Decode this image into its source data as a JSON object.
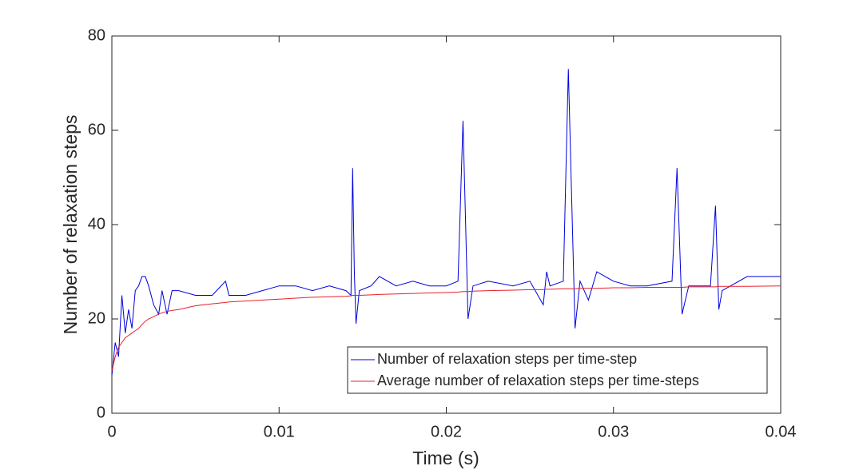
{
  "chart_data": {
    "type": "line",
    "xlabel": "Time (s)",
    "ylabel": "Number of relaxation steps",
    "x": [
      0,
      0.0002,
      0.0004,
      0.0006,
      0.0008,
      0.001,
      0.0012,
      0.0014,
      0.0016,
      0.0018,
      0.002,
      0.0022,
      0.0025,
      0.0028,
      0.003,
      0.0033,
      0.0036,
      0.004,
      0.005,
      0.006,
      0.0068,
      0.007,
      0.008,
      0.009,
      0.01,
      0.011,
      0.012,
      0.013,
      0.014,
      0.0143,
      0.0144,
      0.0145,
      0.0146,
      0.0148,
      0.0155,
      0.016,
      0.017,
      0.018,
      0.019,
      0.02,
      0.0207,
      0.021,
      0.0213,
      0.0216,
      0.0225,
      0.024,
      0.025,
      0.0258,
      0.026,
      0.0262,
      0.027,
      0.0273,
      0.0277,
      0.028,
      0.0285,
      0.029,
      0.03,
      0.031,
      0.032,
      0.0335,
      0.0338,
      0.0341,
      0.0345,
      0.035,
      0.0358,
      0.0361,
      0.0363,
      0.0365,
      0.037,
      0.038,
      0.04
    ],
    "series": [
      {
        "name": "Number of relaxation steps per time-step",
        "color": "#0000dd",
        "values": [
          8,
          15,
          12,
          25,
          17,
          22,
          18,
          26,
          27,
          29,
          29,
          27,
          23,
          21,
          26,
          21,
          26,
          26,
          25,
          25,
          28,
          25,
          25,
          26,
          27,
          27,
          26,
          27,
          26,
          25,
          52,
          30,
          19,
          26,
          27,
          29,
          27,
          28,
          27,
          27,
          28,
          62,
          20,
          27,
          28,
          27,
          28,
          23,
          30,
          27,
          28,
          73,
          18,
          28,
          24,
          30,
          28,
          27,
          27,
          28,
          52,
          21,
          27,
          27,
          27,
          44,
          22,
          26,
          27,
          29,
          29
        ]
      },
      {
        "name": "Average number of relaxation steps per time-steps",
        "color": "#e8202a",
        "values": [
          9,
          12,
          14,
          15,
          16,
          16.5,
          17,
          17.5,
          18,
          18.8,
          19.5,
          20,
          20.5,
          21,
          21.3,
          21.6,
          21.8,
          22,
          22.8,
          23.2,
          23.5,
          23.6,
          23.8,
          24,
          24.2,
          24.4,
          24.6,
          24.7,
          24.8,
          24.9,
          25,
          25,
          25,
          25,
          25.1,
          25.2,
          25.3,
          25.4,
          25.5,
          25.6,
          25.7,
          25.8,
          25.8,
          25.9,
          26,
          26.1,
          26.2,
          26.2,
          26.3,
          26.3,
          26.4,
          26.4,
          26.4,
          26.5,
          26.5,
          26.5,
          26.6,
          26.6,
          26.7,
          26.7,
          26.7,
          26.7,
          26.8,
          26.8,
          26.8,
          26.8,
          26.9,
          26.9,
          26.9,
          26.9,
          27
        ]
      }
    ],
    "xlim": [
      0,
      0.04
    ],
    "xticks": [
      0,
      0.01,
      0.02,
      0.03,
      0.04
    ],
    "ylim": [
      0,
      80
    ],
    "yticks": [
      0,
      20,
      40,
      60,
      80
    ],
    "legend": "lower-right"
  }
}
